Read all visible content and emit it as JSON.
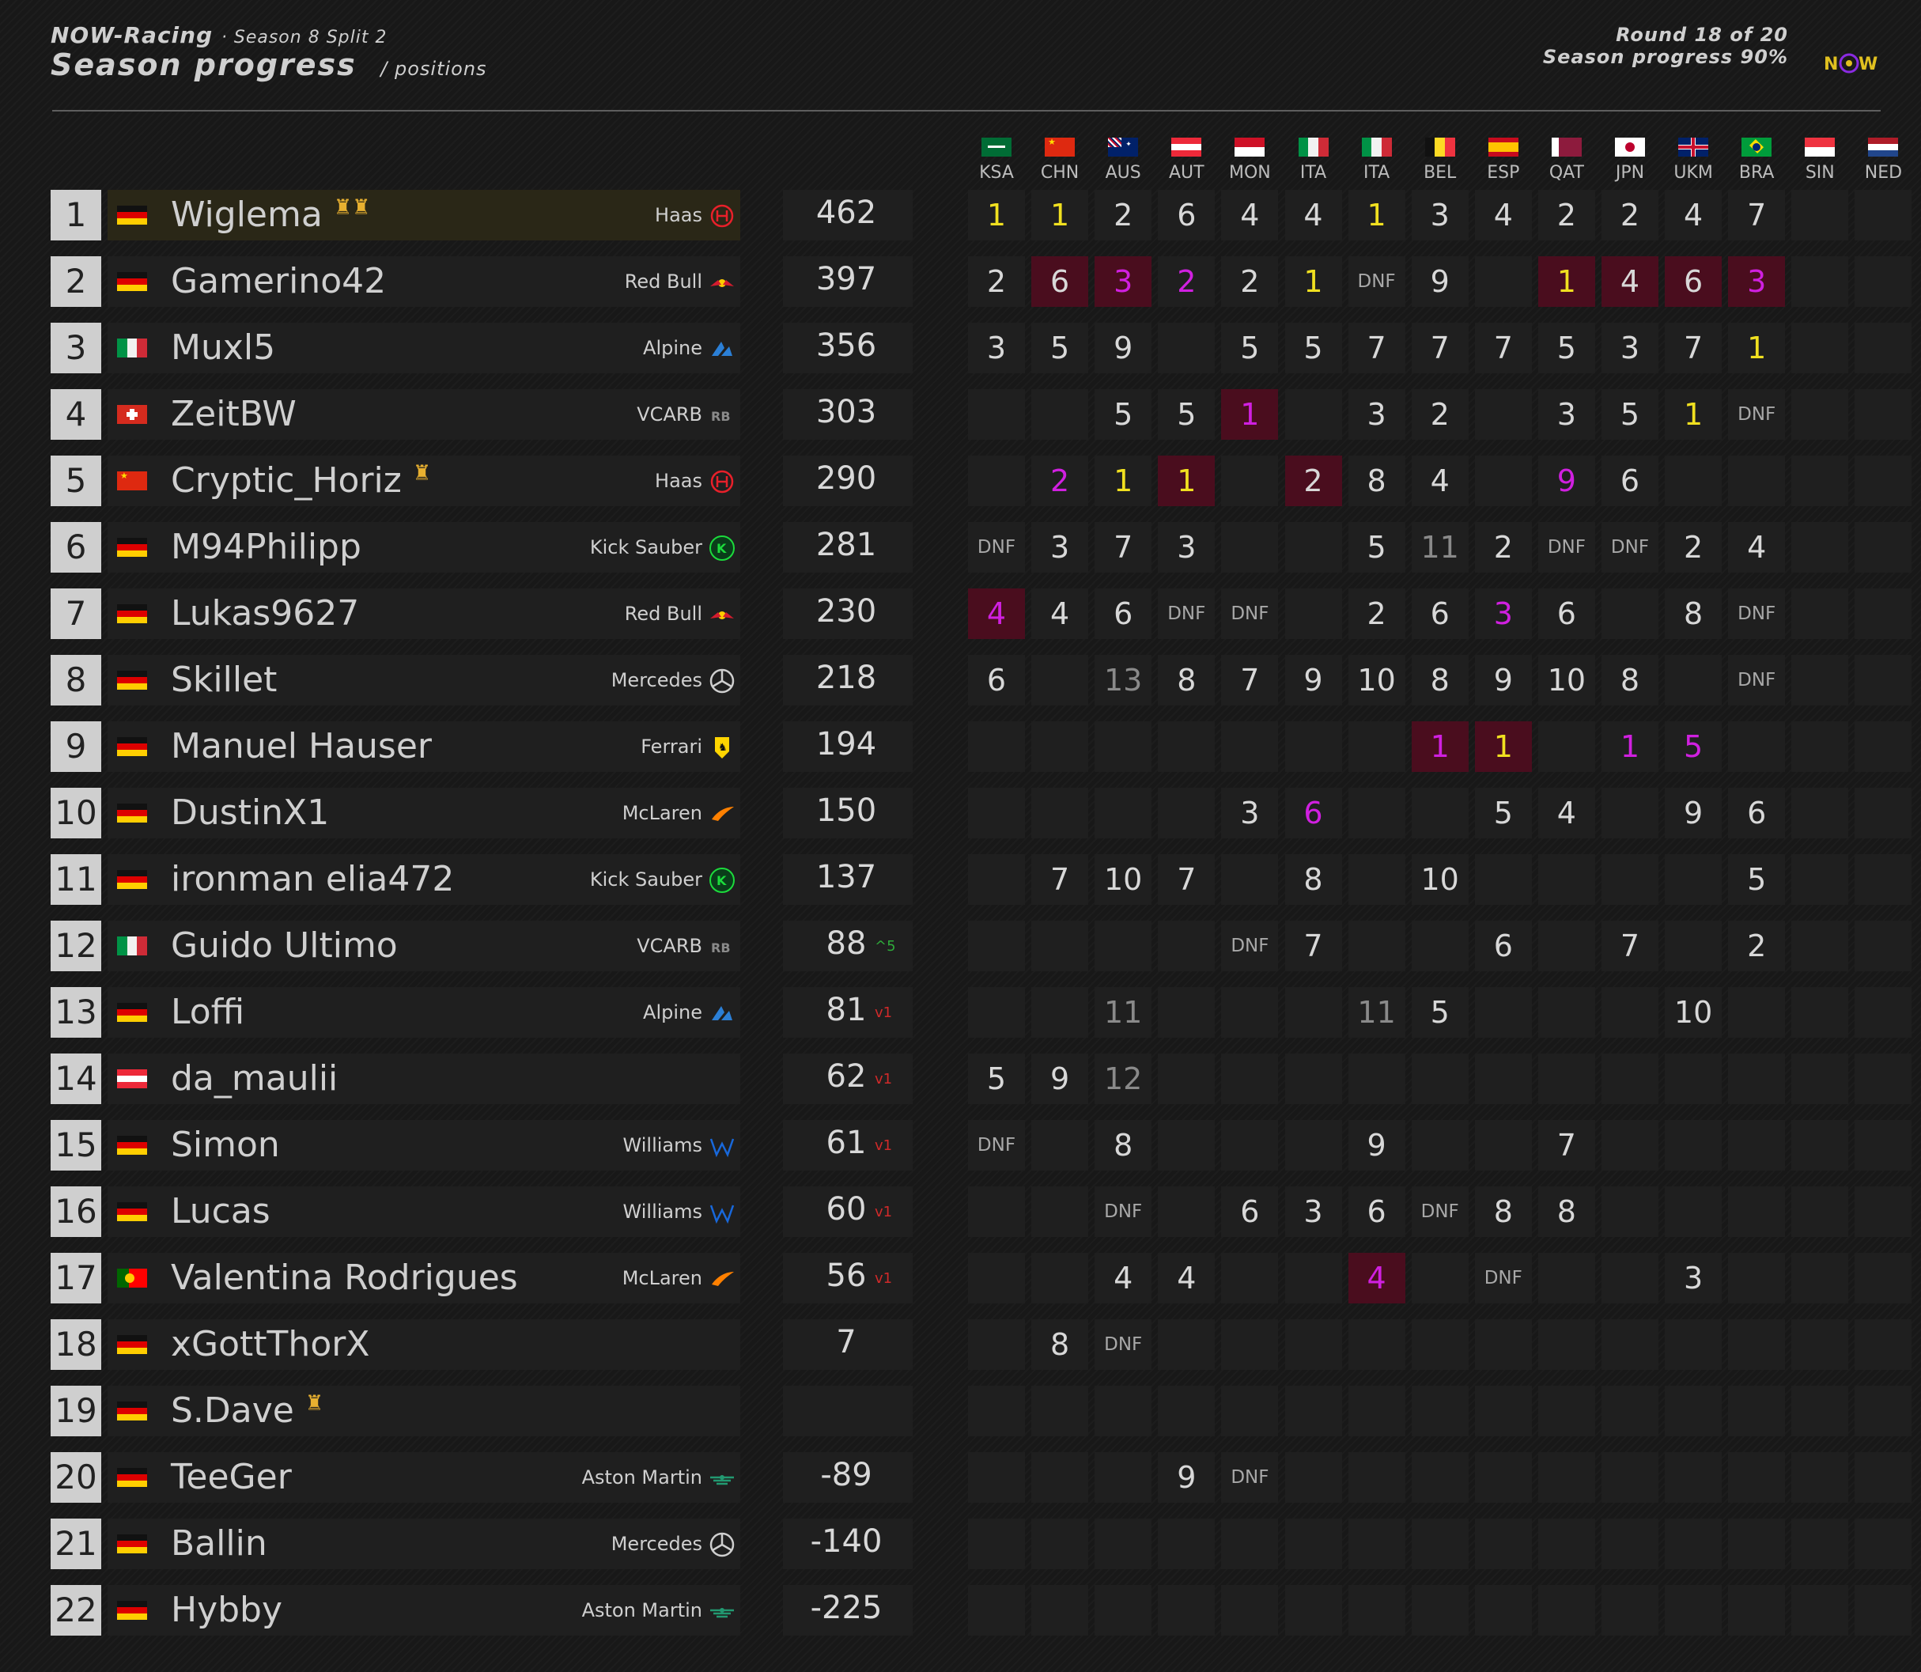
{
  "header": {
    "brand": "NOW-Racing",
    "season": "· Season 8 Split 2",
    "title": "Season progress",
    "subtitle": "/ positions",
    "round": "Round 18 of 20",
    "progress": "Season progress 90%",
    "logo_text": "NOW"
  },
  "races": [
    {
      "code": "KSA",
      "flag": "ksa"
    },
    {
      "code": "CHN",
      "flag": "chn"
    },
    {
      "code": "AUS",
      "flag": "aus"
    },
    {
      "code": "AUT",
      "flag": "aut"
    },
    {
      "code": "MON",
      "flag": "mon"
    },
    {
      "code": "ITA",
      "flag": "ita"
    },
    {
      "code": "ITA",
      "flag": "ita"
    },
    {
      "code": "BEL",
      "flag": "bel"
    },
    {
      "code": "ESP",
      "flag": "esp"
    },
    {
      "code": "QAT",
      "flag": "qat"
    },
    {
      "code": "JPN",
      "flag": "jpn"
    },
    {
      "code": "UKM",
      "flag": "gbr"
    },
    {
      "code": "BRA",
      "flag": "bra"
    },
    {
      "code": "SIN",
      "flag": "sin"
    },
    {
      "code": "NED",
      "flag": "ned"
    }
  ],
  "drivers": [
    {
      "pos": "1",
      "flag": "ger",
      "name": "Wiglema",
      "trophies": 2,
      "team": "Haas",
      "team_icon": "haas-icon",
      "points": "462",
      "change": "",
      "results": [
        "1",
        "1",
        "2",
        "6",
        "4",
        "4",
        "1",
        "3",
        "4",
        "2",
        "2",
        "4",
        "7",
        "",
        ""
      ],
      "styles": [
        "y",
        "y",
        "",
        "",
        "",
        "",
        "y",
        "",
        "",
        "",
        "",
        "",
        "",
        "",
        ""
      ],
      "hl": []
    },
    {
      "pos": "2",
      "flag": "ger",
      "name": "Gamerino42",
      "trophies": 0,
      "team": "Red Bull",
      "team_icon": "redbull-icon",
      "points": "397",
      "change": "",
      "results": [
        "2",
        "6",
        "3",
        "2",
        "2",
        "1",
        "DNF",
        "9",
        "",
        "1",
        "4",
        "6",
        "3",
        "",
        ""
      ],
      "styles": [
        "",
        "",
        "m",
        "m",
        "",
        "y",
        "",
        "",
        "",
        "y",
        "",
        "",
        "m",
        "",
        ""
      ],
      "hl": [
        1,
        2,
        9,
        10,
        11,
        12
      ]
    },
    {
      "pos": "3",
      "flag": "ita",
      "name": "Muxl5",
      "trophies": 0,
      "team": "Alpine",
      "team_icon": "alpine-icon",
      "points": "356",
      "change": "",
      "results": [
        "3",
        "5",
        "9",
        "",
        "5",
        "5",
        "7",
        "7",
        "7",
        "5",
        "3",
        "7",
        "1",
        "",
        ""
      ],
      "styles": [
        "",
        "",
        "",
        "",
        "",
        "",
        "",
        "",
        "",
        "",
        "",
        "",
        "y",
        "",
        ""
      ],
      "hl": []
    },
    {
      "pos": "4",
      "flag": "sui",
      "name": "ZeitBW",
      "trophies": 0,
      "team": "VCARB",
      "team_icon": "vcarb-icon",
      "points": "303",
      "change": "",
      "results": [
        "",
        "",
        "5",
        "5",
        "1",
        "",
        "3",
        "2",
        "",
        "3",
        "5",
        "1",
        "DNF",
        "",
        ""
      ],
      "styles": [
        "",
        "",
        "",
        "",
        "m",
        "",
        "",
        "",
        "",
        "",
        "",
        "y",
        "",
        "",
        ""
      ],
      "hl": [
        4
      ]
    },
    {
      "pos": "5",
      "flag": "chn",
      "name": "Cryptic_Horiz",
      "trophies": 1,
      "team": "Haas",
      "team_icon": "haas-icon",
      "points": "290",
      "change": "",
      "results": [
        "",
        "2",
        "1",
        "1",
        "",
        "2",
        "8",
        "4",
        "",
        "9",
        "6",
        "",
        "",
        "",
        ""
      ],
      "styles": [
        "",
        "m",
        "y",
        "y",
        "",
        "",
        "",
        "",
        "",
        "m",
        "",
        "",
        "",
        "",
        ""
      ],
      "hl": [
        3,
        5
      ]
    },
    {
      "pos": "6",
      "flag": "ger",
      "name": "M94Philipp",
      "trophies": 0,
      "team": "Kick Sauber",
      "team_icon": "kick-icon",
      "points": "281",
      "change": "",
      "results": [
        "DNF",
        "3",
        "7",
        "3",
        "",
        "",
        "5",
        "11",
        "2",
        "DNF",
        "DNF",
        "2",
        "4",
        "",
        ""
      ],
      "styles": [
        "",
        "",
        "",
        "",
        "",
        "",
        "",
        "g",
        "",
        "",
        "",
        "",
        "",
        "",
        ""
      ],
      "hl": []
    },
    {
      "pos": "7",
      "flag": "ger",
      "name": "Lukas9627",
      "trophies": 0,
      "team": "Red Bull",
      "team_icon": "redbull-icon",
      "points": "230",
      "change": "",
      "results": [
        "4",
        "4",
        "6",
        "DNF",
        "DNF",
        "",
        "2",
        "6",
        "3",
        "6",
        "",
        "8",
        "DNF",
        "",
        ""
      ],
      "styles": [
        "m",
        "",
        "",
        "",
        "",
        "",
        "",
        "",
        "m",
        "",
        "",
        "",
        "",
        "",
        ""
      ],
      "hl": [
        0
      ]
    },
    {
      "pos": "8",
      "flag": "ger",
      "name": "Skillet",
      "trophies": 0,
      "team": "Mercedes",
      "team_icon": "mercedes-icon",
      "points": "218",
      "change": "",
      "results": [
        "6",
        "",
        "13",
        "8",
        "7",
        "9",
        "10",
        "8",
        "9",
        "10",
        "8",
        "",
        "DNF",
        "",
        ""
      ],
      "styles": [
        "",
        "",
        "g",
        "",
        "",
        "",
        "",
        "",
        "",
        "",
        "",
        "",
        "",
        "",
        ""
      ],
      "hl": []
    },
    {
      "pos": "9",
      "flag": "ger",
      "name": "Manuel Hauser",
      "trophies": 0,
      "team": "Ferrari",
      "team_icon": "ferrari-icon",
      "points": "194",
      "change": "",
      "results": [
        "",
        "",
        "",
        "",
        "",
        "",
        "",
        "1",
        "1",
        "",
        "1",
        "5",
        "",
        "",
        ""
      ],
      "styles": [
        "",
        "",
        "",
        "",
        "",
        "",
        "",
        "m",
        "y",
        "",
        "m",
        "m",
        "",
        "",
        ""
      ],
      "hl": [
        7,
        8
      ]
    },
    {
      "pos": "10",
      "flag": "ger",
      "name": "DustinX1",
      "trophies": 0,
      "team": "McLaren",
      "team_icon": "mclaren-icon",
      "points": "150",
      "change": "",
      "results": [
        "",
        "",
        "",
        "",
        "3",
        "6",
        "",
        "",
        "5",
        "4",
        "",
        "9",
        "6",
        "",
        ""
      ],
      "styles": [
        "",
        "",
        "",
        "",
        "",
        "m",
        "",
        "",
        "",
        "",
        "",
        "",
        "",
        "",
        ""
      ],
      "hl": []
    },
    {
      "pos": "11",
      "flag": "ger",
      "name": "ironman elia472",
      "trophies": 0,
      "team": "Kick Sauber",
      "team_icon": "kick-icon",
      "points": "137",
      "change": "",
      "results": [
        "",
        "7",
        "10",
        "7",
        "",
        "8",
        "",
        "10",
        "",
        "",
        "",
        "",
        "5",
        "",
        ""
      ],
      "styles": [
        "",
        "",
        "",
        "",
        "",
        "",
        "",
        "",
        "",
        "",
        "",
        "",
        "",
        "",
        ""
      ],
      "hl": []
    },
    {
      "pos": "12",
      "flag": "ita",
      "name": "Guido Ultimo",
      "trophies": 0,
      "team": "VCARB",
      "team_icon": "vcarb-icon",
      "points": "88",
      "change": "^5",
      "change_dir": "up",
      "results": [
        "",
        "",
        "",
        "",
        "DNF",
        "7",
        "",
        "",
        "6",
        "",
        "7",
        "",
        "2",
        "",
        ""
      ],
      "styles": [
        "",
        "",
        "",
        "",
        "",
        "",
        "",
        "",
        "",
        "",
        "",
        "",
        "",
        "",
        ""
      ],
      "hl": []
    },
    {
      "pos": "13",
      "flag": "ger",
      "name": "Loffi",
      "trophies": 0,
      "team": "Alpine",
      "team_icon": "alpine-icon",
      "points": "81",
      "change": "v1",
      "change_dir": "down",
      "results": [
        "",
        "",
        "11",
        "",
        "",
        "",
        "11",
        "5",
        "",
        "",
        "",
        "10",
        "",
        "",
        ""
      ],
      "styles": [
        "",
        "",
        "g",
        "",
        "",
        "",
        "g",
        "",
        "",
        "",
        "",
        "",
        "",
        "",
        ""
      ],
      "hl": []
    },
    {
      "pos": "14",
      "flag": "aut",
      "name": "da_maulii",
      "trophies": 0,
      "team": "",
      "team_icon": "",
      "points": "62",
      "change": "v1",
      "change_dir": "down",
      "results": [
        "5",
        "9",
        "12",
        "",
        "",
        "",
        "",
        "",
        "",
        "",
        "",
        "",
        "",
        "",
        ""
      ],
      "styles": [
        "",
        "",
        "g",
        "",
        "",
        "",
        "",
        "",
        "",
        "",
        "",
        "",
        "",
        "",
        ""
      ],
      "hl": []
    },
    {
      "pos": "15",
      "flag": "ger",
      "name": "Simon",
      "trophies": 0,
      "team": "Williams",
      "team_icon": "williams-icon",
      "points": "61",
      "change": "v1",
      "change_dir": "down",
      "results": [
        "DNF",
        "",
        "8",
        "",
        "",
        "",
        "9",
        "",
        "",
        "7",
        "",
        "",
        "",
        "",
        ""
      ],
      "styles": [
        "",
        "",
        "",
        "",
        "",
        "",
        "",
        "",
        "",
        "",
        "",
        "",
        "",
        "",
        ""
      ],
      "hl": []
    },
    {
      "pos": "16",
      "flag": "ger",
      "name": "Lucas",
      "trophies": 0,
      "team": "Williams",
      "team_icon": "williams-icon",
      "points": "60",
      "change": "v1",
      "change_dir": "down",
      "results": [
        "",
        "",
        "DNF",
        "",
        "6",
        "3",
        "6",
        "DNF",
        "8",
        "8",
        "",
        "",
        "",
        "",
        ""
      ],
      "styles": [
        "",
        "",
        "",
        "",
        "",
        "",
        "",
        "",
        "",
        "",
        "",
        "",
        "",
        "",
        ""
      ],
      "hl": []
    },
    {
      "pos": "17",
      "flag": "por",
      "name": "Valentina Rodrigues",
      "trophies": 0,
      "team": "McLaren",
      "team_icon": "mclaren-icon",
      "points": "56",
      "change": "v1",
      "change_dir": "down",
      "results": [
        "",
        "",
        "4",
        "4",
        "",
        "",
        "4",
        "",
        "DNF",
        "",
        "",
        "3",
        "",
        "",
        ""
      ],
      "styles": [
        "",
        "",
        "",
        "",
        "",
        "",
        "m",
        "",
        "",
        "",
        "",
        "",
        "",
        "",
        ""
      ],
      "hl": [
        6
      ]
    },
    {
      "pos": "18",
      "flag": "ger",
      "name": "xGottThorX",
      "trophies": 0,
      "team": "",
      "team_icon": "",
      "points": "7",
      "change": "",
      "results": [
        "",
        "8",
        "DNF",
        "",
        "",
        "",
        "",
        "",
        "",
        "",
        "",
        "",
        "",
        "",
        ""
      ],
      "styles": [
        "",
        "",
        "",
        "",
        "",
        "",
        "",
        "",
        "",
        "",
        "",
        "",
        "",
        "",
        ""
      ],
      "hl": []
    },
    {
      "pos": "19",
      "flag": "ger",
      "name": "S.Dave",
      "trophies": 1,
      "team": "",
      "team_icon": "",
      "points": "",
      "change": "",
      "results": [
        "",
        "",
        "",
        "",
        "",
        "",
        "",
        "",
        "",
        "",
        "",
        "",
        "",
        "",
        ""
      ],
      "styles": [
        "",
        "",
        "",
        "",
        "",
        "",
        "",
        "",
        "",
        "",
        "",
        "",
        "",
        "",
        ""
      ],
      "hl": []
    },
    {
      "pos": "20",
      "flag": "ger",
      "name": "TeeGer",
      "trophies": 0,
      "team": "Aston Martin",
      "team_icon": "astonmartin-icon",
      "points": "-89",
      "change": "",
      "results": [
        "",
        "",
        "",
        "9",
        "DNF",
        "",
        "",
        "",
        "",
        "",
        "",
        "",
        "",
        "",
        ""
      ],
      "styles": [
        "",
        "",
        "",
        "",
        "",
        "",
        "",
        "",
        "",
        "",
        "",
        "",
        "",
        "",
        ""
      ],
      "hl": []
    },
    {
      "pos": "21",
      "flag": "ger",
      "name": "Ballin",
      "trophies": 0,
      "team": "Mercedes",
      "team_icon": "mercedes-icon",
      "points": "-140",
      "change": "",
      "results": [
        "",
        "",
        "",
        "",
        "",
        "",
        "",
        "",
        "",
        "",
        "",
        "",
        "",
        "",
        ""
      ],
      "styles": [
        "",
        "",
        "",
        "",
        "",
        "",
        "",
        "",
        "",
        "",
        "",
        "",
        "",
        "",
        ""
      ],
      "hl": []
    },
    {
      "pos": "22",
      "flag": "ger",
      "name": "Hybby",
      "trophies": 0,
      "team": "Aston Martin",
      "team_icon": "astonmartin-icon",
      "points": "-225",
      "change": "",
      "results": [
        "",
        "",
        "",
        "",
        "",
        "",
        "",
        "",
        "",
        "",
        "",
        "",
        "",
        "",
        ""
      ],
      "styles": [
        "",
        "",
        "",
        "",
        "",
        "",
        "",
        "",
        "",
        "",
        "",
        "",
        "",
        "",
        ""
      ],
      "hl": []
    }
  ],
  "colors": {
    "win": "#f0e020",
    "fastest": "#d020e0",
    "highlight": "#4a0d1e",
    "up": "#2eaa3a",
    "down": "#d02a2a",
    "leader_row": "#2a2717"
  }
}
